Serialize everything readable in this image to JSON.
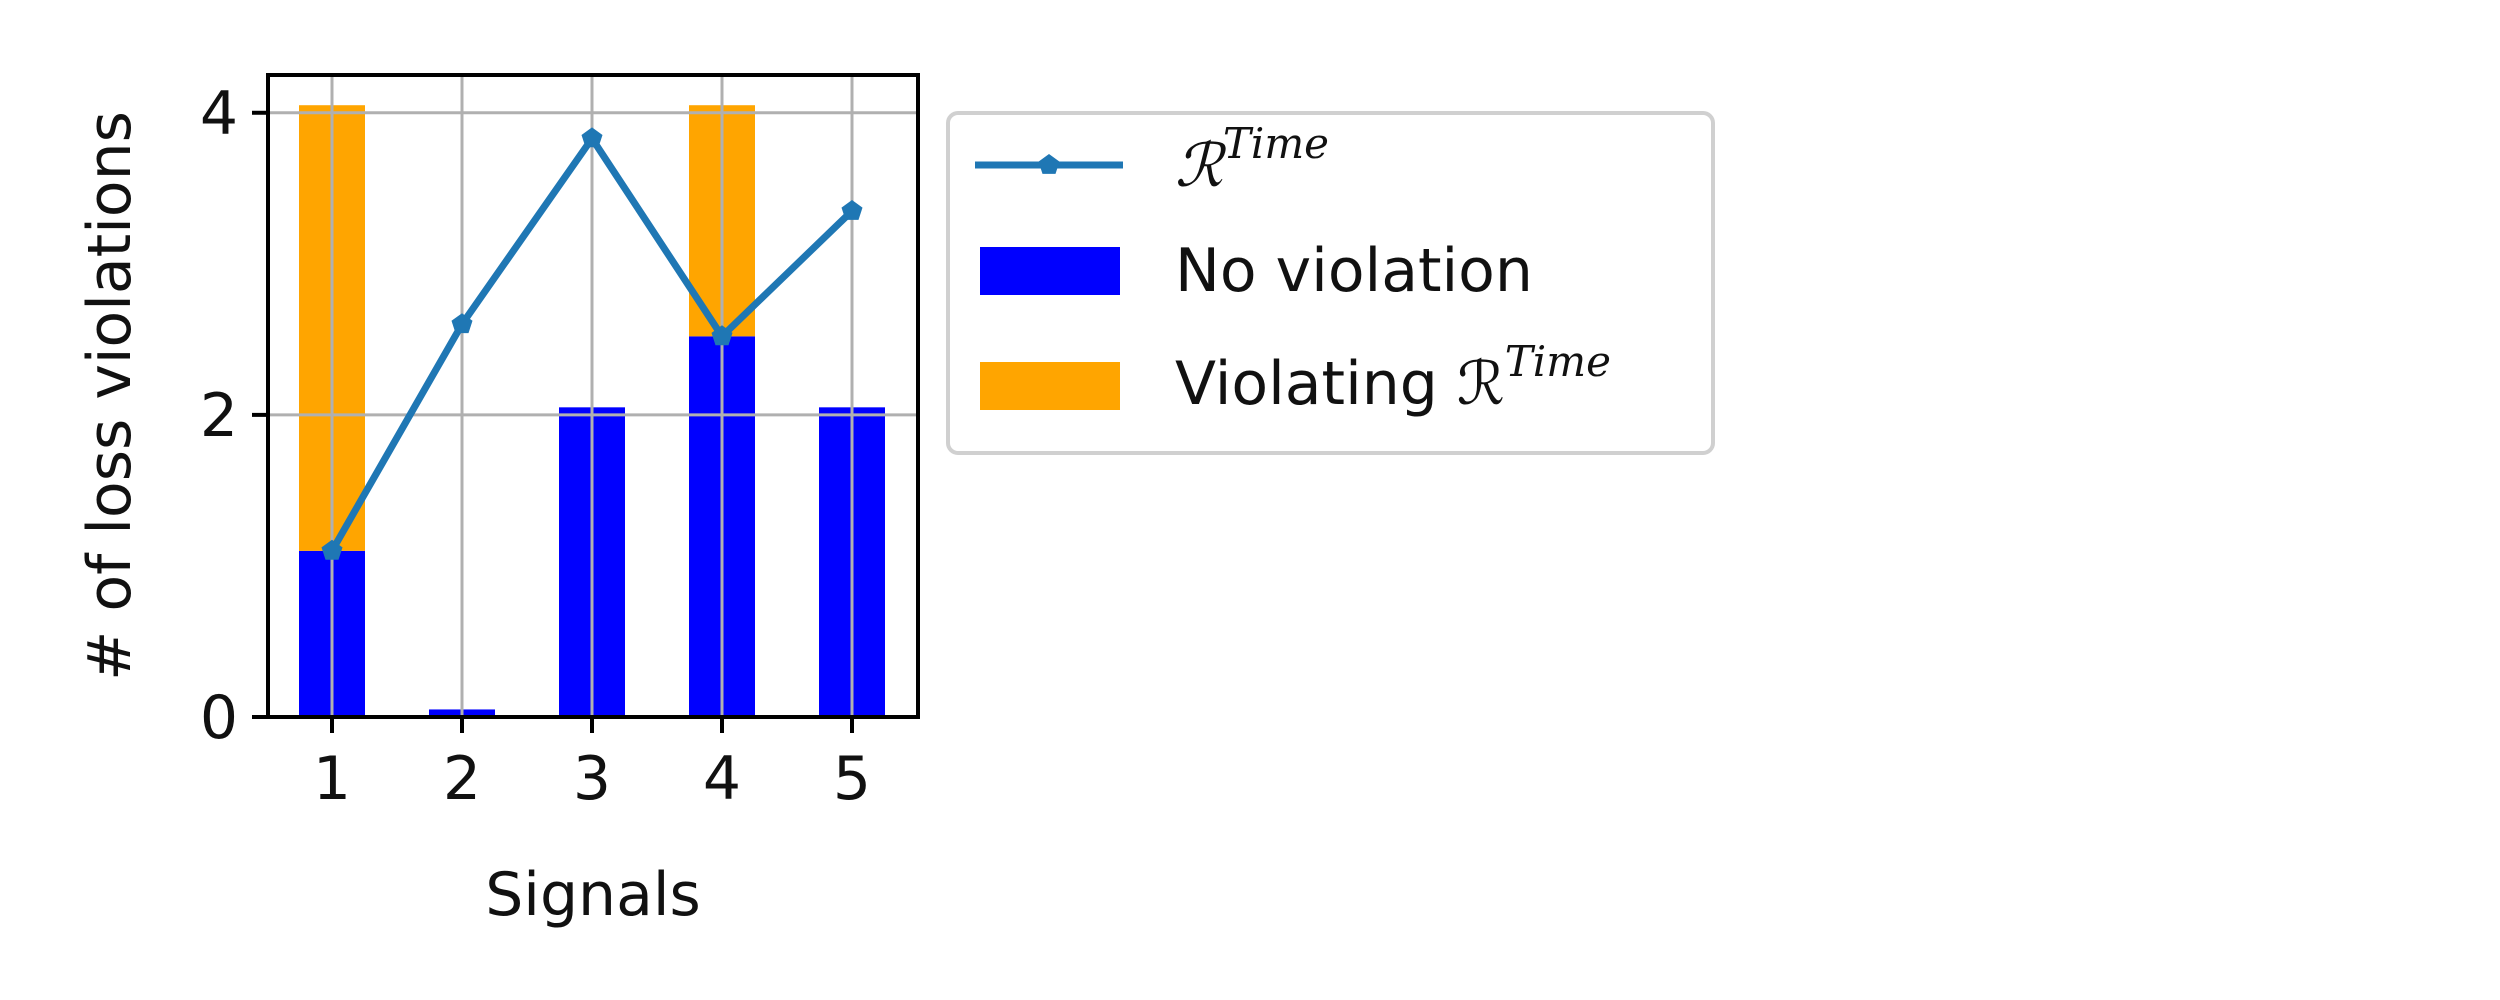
{
  "chart_data": {
    "type": "bar",
    "stacked": true,
    "categories": [
      "1",
      "2",
      "3",
      "4",
      "5"
    ],
    "series": [
      {
        "name": "No violation",
        "kind": "bar",
        "color": "#0000ff",
        "values": [
          1.1,
          0.05,
          2.05,
          2.52,
          2.05
        ]
      },
      {
        "name": "Violating ℛ^Time",
        "kind": "bar",
        "color": "#ffa500",
        "values": [
          2.95,
          0.0,
          0.0,
          1.53,
          0.0
        ]
      },
      {
        "name": "ℛ^Time",
        "kind": "line",
        "marker": "pentagon",
        "color": "#1f77b4",
        "values": [
          1.1,
          2.6,
          3.83,
          2.52,
          3.35
        ]
      }
    ],
    "xlabel": "Signals",
    "ylabel": "# of loss violations",
    "ylim": [
      0,
      4.25
    ],
    "yticks": [
      0,
      2,
      4
    ],
    "grid": true,
    "legend_position": "outside-right-top"
  },
  "legend": {
    "line_label_base": "ℛ",
    "line_label_sup": "Time",
    "no_violation_label": "No violation",
    "violating_label_base": "Violating ℛ",
    "violating_label_sup": "Time"
  }
}
